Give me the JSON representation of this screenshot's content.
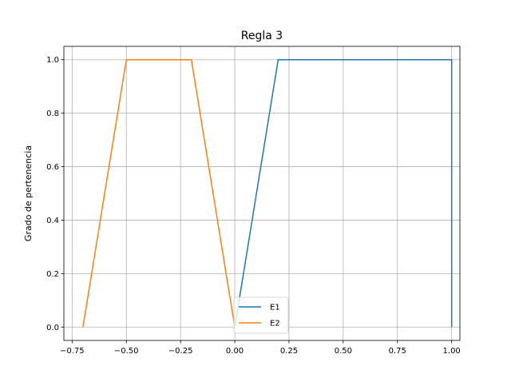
{
  "chart_data": {
    "type": "line",
    "title": "Regla 3",
    "xlabel": "",
    "ylabel": "Grado de pertenencia",
    "xlim": [
      -0.75,
      1.0
    ],
    "ylim": [
      0.0,
      1.0
    ],
    "xticks": [
      "−0.75",
      "−0.50",
      "−0.25",
      "0.00",
      "0.25",
      "0.50",
      "0.75",
      "1.00"
    ],
    "yticks": [
      "0.0",
      "0.2",
      "0.4",
      "0.6",
      "0.8",
      "1.0"
    ],
    "grid": true,
    "legend_position": "lower-center",
    "series": [
      {
        "name": "E1",
        "color": "#1f77b4",
        "x": [
          0.0,
          0.2,
          1.0,
          1.0
        ],
        "y": [
          0.0,
          1.0,
          1.0,
          0.0
        ]
      },
      {
        "name": "E2",
        "color": "#ff7f0e",
        "x": [
          -0.7,
          -0.5,
          -0.2,
          0.0
        ],
        "y": [
          0.0,
          1.0,
          1.0,
          0.0
        ]
      }
    ]
  }
}
